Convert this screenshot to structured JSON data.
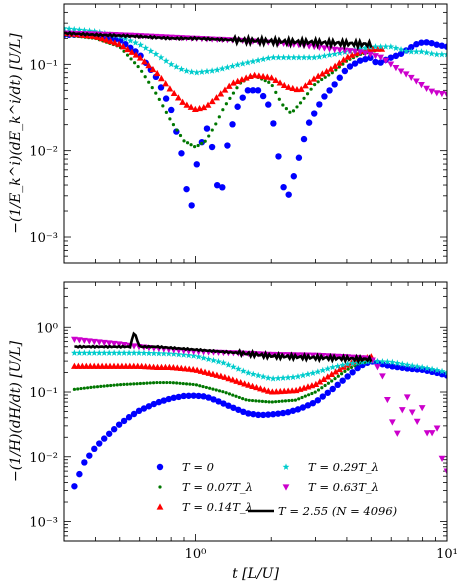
{
  "chart_data": [
    {
      "id": "top",
      "type": "scatter",
      "ylabel": "−(1/E_k^i)(dE_k^i/dt) [U/L]",
      "xscale": "log",
      "yscale": "log",
      "xlim": [
        0.3,
        10
      ],
      "ylim": [
        0.0005,
        0.5
      ],
      "y_ticks": [
        {
          "value": 0.001,
          "label": "10⁻³"
        },
        {
          "value": 0.01,
          "label": "10⁻²"
        },
        {
          "value": 0.1,
          "label": "10⁻¹"
        }
      ],
      "x_tick_labels_visible": false,
      "series": [
        {
          "name": "T = 0",
          "color": "#0000ff",
          "marker": "circle",
          "x": [
            0.3,
            0.36,
            0.43,
            0.5,
            0.6,
            0.7,
            0.8,
            0.9,
            0.95,
            1.0,
            1.1,
            1.2,
            1.25,
            1.3,
            1.45,
            1.6,
            1.8,
            2.0,
            2.2,
            2.3,
            2.5,
            2.8,
            3.2,
            3.6,
            4.0,
            4.5,
            5.0,
            5.3,
            5.6,
            6.0,
            6.5,
            7.0,
            7.5,
            8.0,
            8.5,
            9.0,
            10.0
          ],
          "y": [
            0.22,
            0.22,
            0.21,
            0.19,
            0.13,
            0.07,
            0.03,
            0.007,
            0.0015,
            0.006,
            0.02,
            0.008,
            0.0014,
            0.008,
            0.03,
            0.05,
            0.05,
            0.03,
            0.005,
            0.0025,
            0.006,
            0.02,
            0.04,
            0.06,
            0.09,
            0.11,
            0.12,
            0.1,
            0.11,
            0.12,
            0.13,
            0.15,
            0.17,
            0.18,
            0.18,
            0.17,
            0.16
          ]
        },
        {
          "name": "T = 0.07T_λ",
          "color": "#007700",
          "marker": "dot",
          "x": [
            0.3,
            0.4,
            0.5,
            0.6,
            0.7,
            0.8,
            0.9,
            1.0,
            1.1,
            1.2,
            1.3,
            1.5,
            1.7,
            2.0,
            2.2,
            2.4,
            2.6,
            3.0,
            3.5,
            4.0,
            4.5,
            5.0,
            5.5
          ],
          "y": [
            0.22,
            0.2,
            0.16,
            0.09,
            0.045,
            0.022,
            0.013,
            0.011,
            0.013,
            0.02,
            0.032,
            0.06,
            0.075,
            0.06,
            0.035,
            0.027,
            0.035,
            0.06,
            0.08,
            0.11,
            0.13,
            0.14,
            0.15
          ]
        },
        {
          "name": "T = 0.14T_λ",
          "color": "#ff0000",
          "marker": "triangle",
          "x": [
            0.3,
            0.4,
            0.5,
            0.6,
            0.7,
            0.8,
            0.9,
            1.0,
            1.1,
            1.2,
            1.4,
            1.7,
            2.0,
            2.3,
            2.6,
            3.0,
            3.5,
            4.0,
            4.5,
            5.0,
            5.5
          ],
          "y": [
            0.23,
            0.21,
            0.17,
            0.12,
            0.08,
            0.05,
            0.035,
            0.03,
            0.032,
            0.04,
            0.06,
            0.075,
            0.07,
            0.055,
            0.05,
            0.07,
            0.09,
            0.12,
            0.14,
            0.15,
            0.15
          ]
        },
        {
          "name": "T = 0.29T_λ",
          "color": "#00cccc",
          "marker": "star",
          "x": [
            0.3,
            0.4,
            0.5,
            0.6,
            0.7,
            0.8,
            0.9,
            1.0,
            1.2,
            1.5,
            2.0,
            2.5,
            3.0,
            3.5,
            4.0,
            4.5,
            5.0,
            6.0,
            7.0,
            8.0,
            9.0,
            10.0
          ],
          "y": [
            0.26,
            0.24,
            0.21,
            0.17,
            0.13,
            0.1,
            0.085,
            0.08,
            0.085,
            0.1,
            0.12,
            0.12,
            0.12,
            0.13,
            0.14,
            0.15,
            0.16,
            0.16,
            0.14,
            0.14,
            0.13,
            0.13
          ]
        },
        {
          "name": "T = 0.63T_λ",
          "color": "#cc00cc",
          "marker": "triangle-down",
          "x": [
            0.3,
            0.5,
            0.7,
            1.0,
            1.5,
            2.0,
            2.5,
            3.0,
            3.5,
            4.0,
            4.5,
            5.0,
            5.5,
            6.0,
            6.5,
            7.0,
            7.5,
            8.0,
            8.5,
            9.0,
            10.0
          ],
          "y": [
            0.23,
            0.22,
            0.21,
            0.2,
            0.19,
            0.18,
            0.17,
            0.16,
            0.15,
            0.145,
            0.14,
            0.13,
            0.12,
            0.1,
            0.085,
            0.075,
            0.065,
            0.057,
            0.05,
            0.047,
            0.045
          ]
        },
        {
          "name": "T = 2.55 (N = 4096)",
          "color": "#000000",
          "marker": "line",
          "x": [
            0.3,
            0.4,
            0.5,
            0.6,
            0.8,
            1.0,
            1.5,
            2.0,
            3.0,
            4.0,
            5.0
          ],
          "y": [
            0.23,
            0.22,
            0.215,
            0.21,
            0.2,
            0.2,
            0.19,
            0.185,
            0.18,
            0.175,
            0.17
          ]
        }
      ]
    },
    {
      "id": "bottom",
      "type": "scatter",
      "xlabel": "t  [L/U]",
      "ylabel": "−(1/H)(dH/dt)  [U/L]",
      "xscale": "log",
      "yscale": "log",
      "xlim": [
        0.3,
        10
      ],
      "ylim": [
        0.0005,
        5
      ],
      "x_ticks": [
        {
          "value": 1,
          "label": "10⁰"
        },
        {
          "value": 10,
          "label": "10¹"
        }
      ],
      "y_ticks": [
        {
          "value": 0.001,
          "label": "10⁻³"
        },
        {
          "value": 0.01,
          "label": "10⁻²"
        },
        {
          "value": 0.1,
          "label": "10⁻¹"
        },
        {
          "value": 1,
          "label": "10⁰"
        }
      ],
      "legend": {
        "placement": "lower-center",
        "entries": [
          {
            "label": "T = 0",
            "marker": "circle",
            "color": "#0000ff"
          },
          {
            "label": "T = 0.29T_λ",
            "marker": "star",
            "color": "#00cccc"
          },
          {
            "label": "T = 0.07T_λ",
            "marker": "dot",
            "color": "#007700"
          },
          {
            "label": "T = 0.63T_λ",
            "marker": "triangle-down",
            "color": "#cc00cc"
          },
          {
            "label": "T = 0.14T_λ",
            "marker": "triangle",
            "color": "#ff0000"
          },
          {
            "label": "T = 2.55 (N = 4096)",
            "marker": "line",
            "color": "#000000"
          }
        ]
      },
      "series": [
        {
          "name": "T = 0",
          "color": "#0000ff",
          "marker": "circle",
          "x": [
            0.33,
            0.36,
            0.4,
            0.45,
            0.5,
            0.55,
            0.6,
            0.7,
            0.8,
            0.9,
            1.0,
            1.1,
            1.2,
            1.4,
            1.6,
            1.8,
            2.0,
            2.3,
            2.6,
            3.0,
            3.5,
            4.0,
            4.5,
            5.0,
            5.5,
            6.0,
            7.0,
            8.0,
            9.0,
            10.0
          ],
          "y": [
            0.0035,
            0.008,
            0.014,
            0.022,
            0.032,
            0.042,
            0.052,
            0.068,
            0.08,
            0.087,
            0.088,
            0.085,
            0.075,
            0.058,
            0.047,
            0.044,
            0.045,
            0.048,
            0.055,
            0.07,
            0.11,
            0.17,
            0.25,
            0.3,
            0.27,
            0.25,
            0.23,
            0.22,
            0.2,
            0.18
          ]
        },
        {
          "name": "T = 0.07T_λ",
          "color": "#007700",
          "marker": "dot",
          "x": [
            0.33,
            0.4,
            0.5,
            0.6,
            0.7,
            0.8,
            1.0,
            1.3,
            1.6,
            2.0,
            2.5,
            3.0,
            3.5,
            4.0,
            4.5,
            5.0
          ],
          "y": [
            0.11,
            0.12,
            0.13,
            0.135,
            0.14,
            0.14,
            0.13,
            0.1,
            0.075,
            0.07,
            0.075,
            0.1,
            0.15,
            0.22,
            0.28,
            0.3
          ]
        },
        {
          "name": "T = 0.14T_λ",
          "color": "#ff0000",
          "marker": "triangle",
          "x": [
            0.33,
            0.4,
            0.5,
            0.6,
            0.7,
            0.8,
            1.0,
            1.3,
            1.6,
            2.0,
            2.5,
            3.0,
            3.5,
            4.0,
            4.5,
            5.0
          ],
          "y": [
            0.25,
            0.25,
            0.25,
            0.25,
            0.24,
            0.24,
            0.22,
            0.17,
            0.13,
            0.1,
            0.105,
            0.13,
            0.19,
            0.26,
            0.32,
            0.35
          ]
        },
        {
          "name": "T = 0.29T_λ",
          "color": "#00cccc",
          "marker": "star",
          "x": [
            0.33,
            0.4,
            0.5,
            0.6,
            0.8,
            1.0,
            1.3,
            1.6,
            2.0,
            2.5,
            3.0,
            3.5,
            4.0,
            5.0,
            6.0,
            7.0,
            8.0,
            9.0,
            10.0
          ],
          "y": [
            0.4,
            0.4,
            0.4,
            0.4,
            0.39,
            0.36,
            0.28,
            0.2,
            0.16,
            0.17,
            0.2,
            0.24,
            0.27,
            0.3,
            0.29,
            0.26,
            0.24,
            0.22,
            0.2
          ]
        },
        {
          "name": "T = 0.63T_λ",
          "color": "#cc00cc",
          "marker": "triangle-down",
          "x": [
            0.33,
            0.4,
            0.5,
            0.6,
            0.8,
            1.0,
            1.5,
            2.0,
            3.0,
            4.0,
            5.0,
            5.5,
            6.0,
            6.3,
            6.6,
            7.0,
            7.5,
            8.0,
            8.5,
            9.0,
            9.5,
            10.0
          ],
          "y": [
            0.65,
            0.6,
            0.55,
            0.5,
            0.45,
            0.42,
            0.4,
            0.38,
            0.37,
            0.35,
            0.33,
            0.2,
            0.04,
            0.02,
            0.05,
            0.09,
            0.03,
            0.06,
            0.015,
            0.04,
            0.01,
            0.006
          ]
        },
        {
          "name": "T = 2.55 (N = 4096)",
          "color": "#000000",
          "marker": "line",
          "x": [
            0.33,
            0.4,
            0.5,
            0.55,
            0.57,
            0.6,
            0.7,
            0.8,
            1.0,
            1.5,
            2.0,
            3.0,
            4.0,
            5.0
          ],
          "y": [
            0.5,
            0.5,
            0.5,
            0.5,
            0.85,
            0.5,
            0.5,
            0.48,
            0.45,
            0.4,
            0.36,
            0.34,
            0.33,
            0.32
          ]
        }
      ]
    }
  ]
}
